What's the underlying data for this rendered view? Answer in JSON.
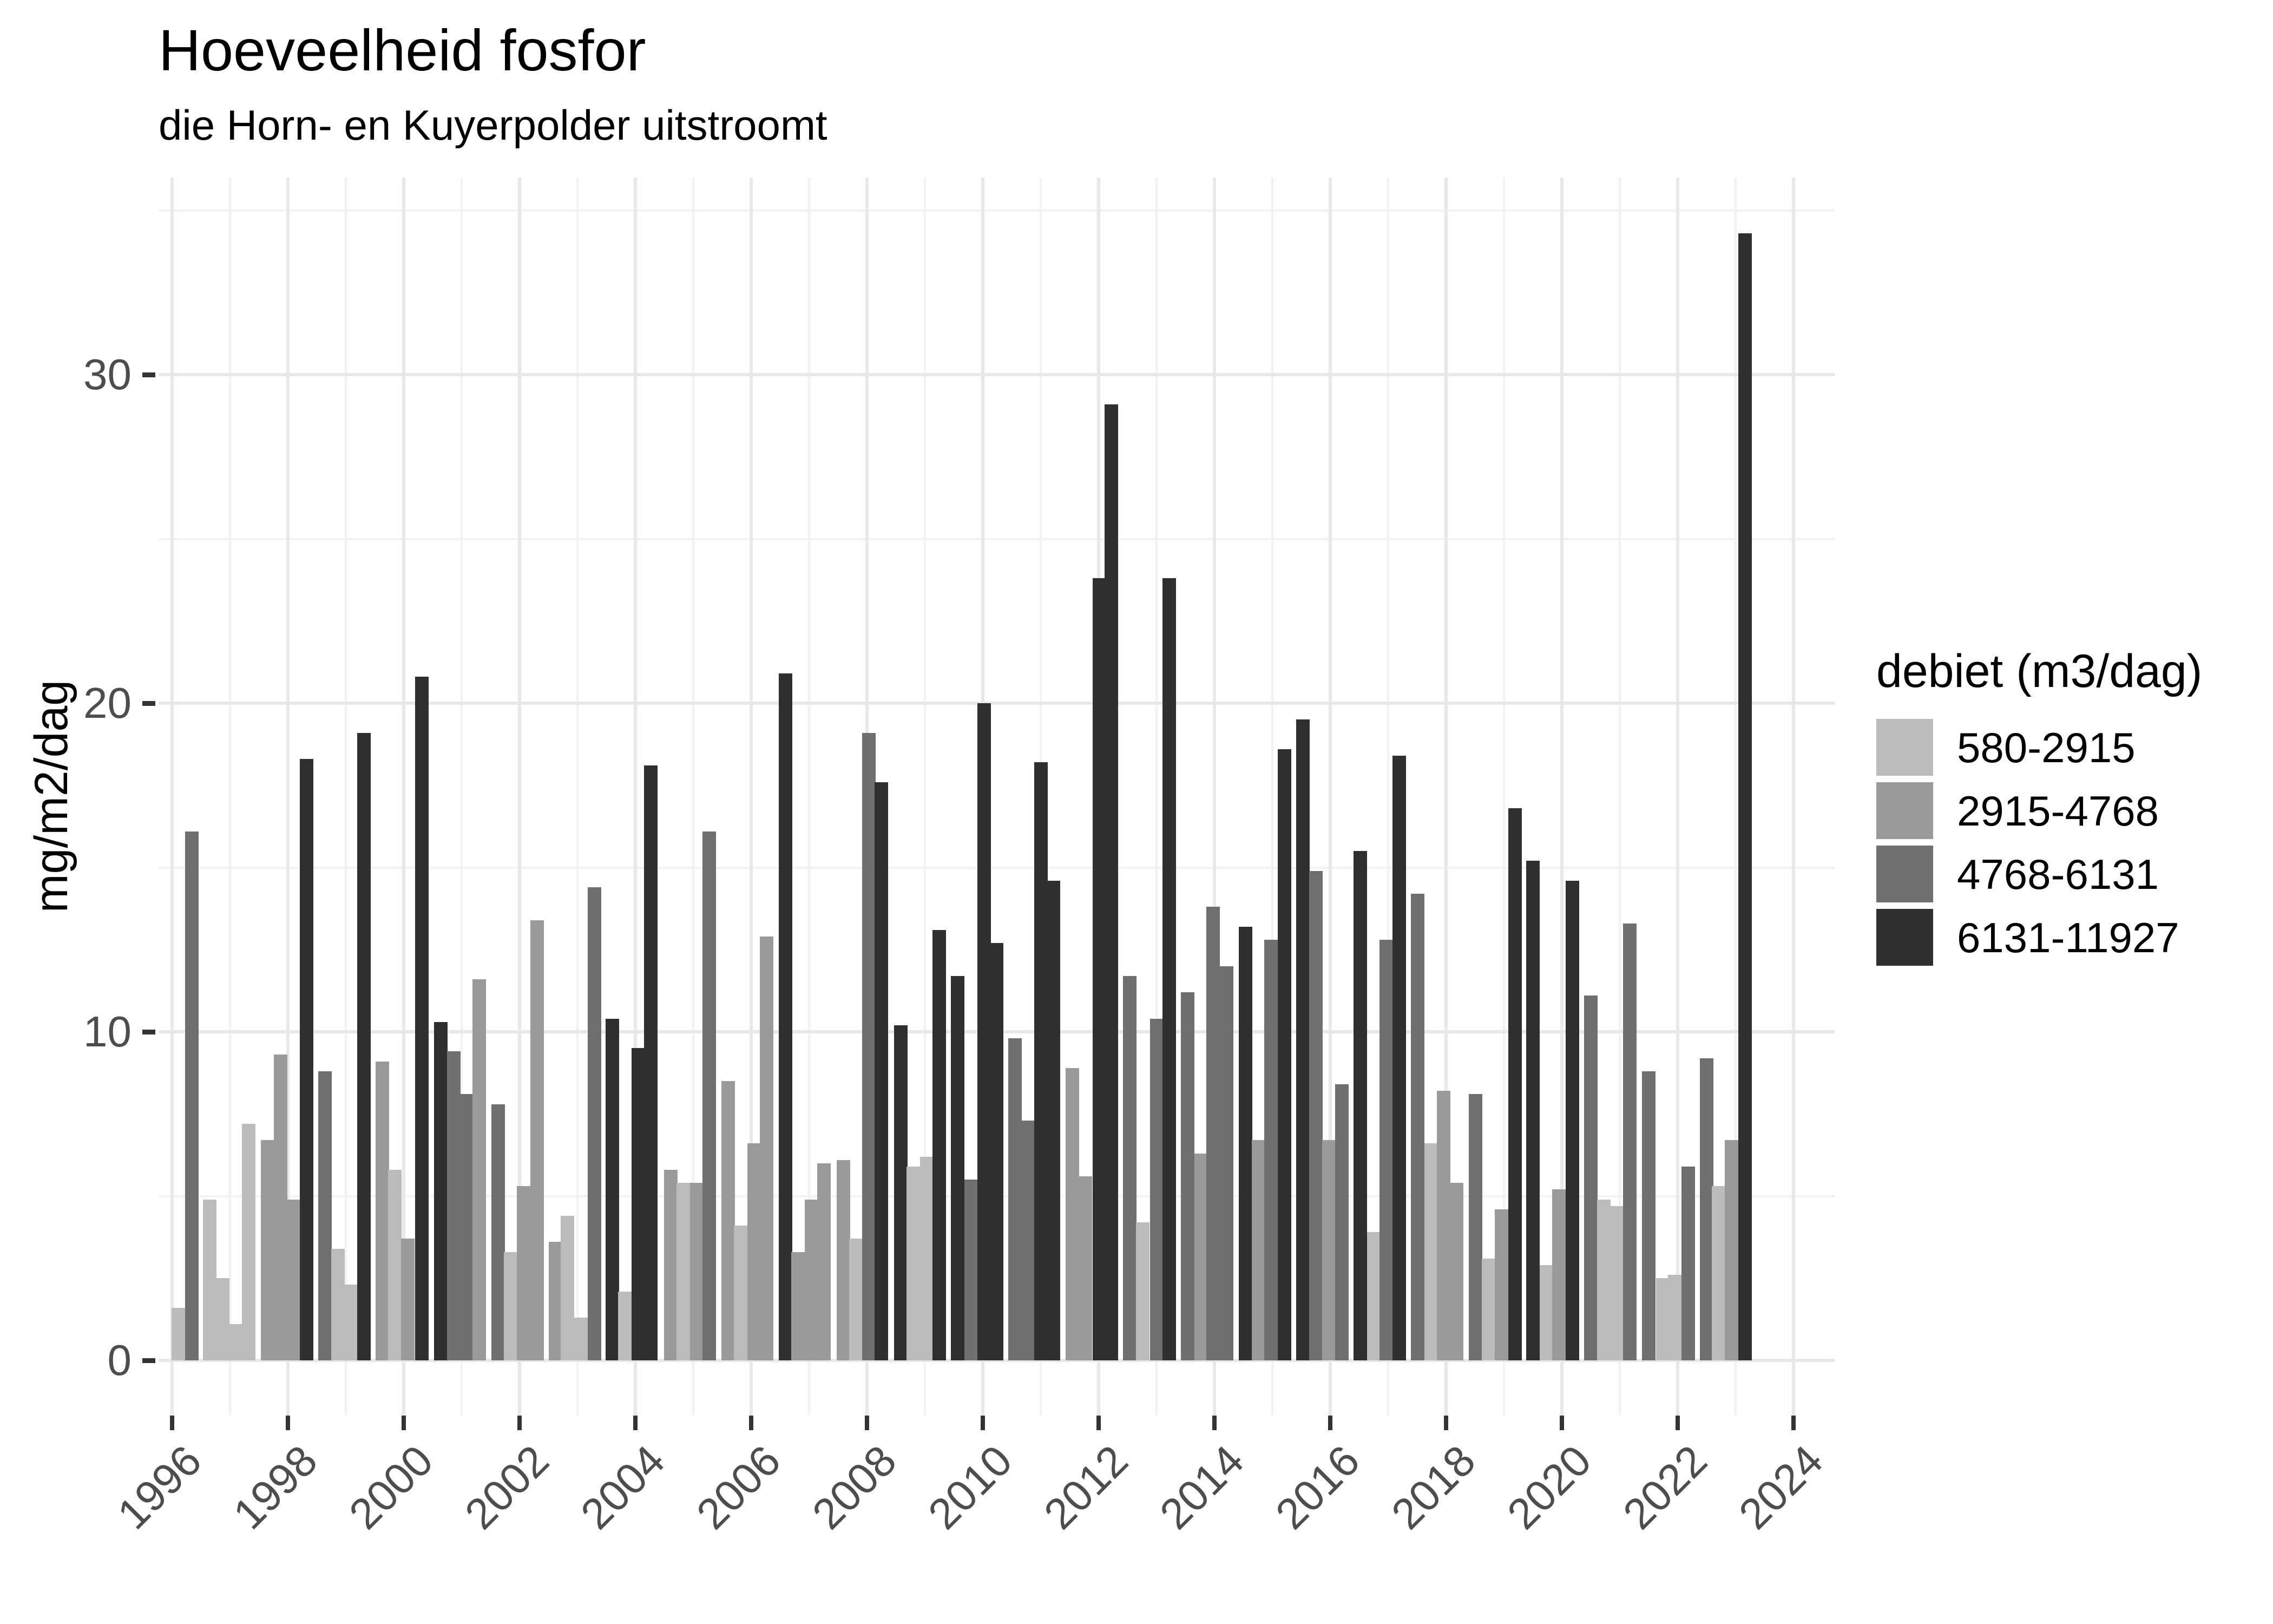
{
  "title": "Hoeveelheid fosfor",
  "subtitle": "die Horn- en Kuyerpolder uitstroomt",
  "y_axis_title": "mg/m2/dag",
  "legend": {
    "title": "debiet (m3/dag)",
    "items": [
      {
        "label": "580-2915",
        "color": "#BBBBBB"
      },
      {
        "label": "2915-4768",
        "color": "#9A9A9A"
      },
      {
        "label": "4768-6131",
        "color": "#6F6F6F"
      },
      {
        "label": "6131-11927",
        "color": "#2F2F2F"
      }
    ]
  },
  "chart_data": {
    "type": "bar",
    "title": "Hoeveelheid fosfor",
    "subtitle": "die Horn- en Kuyerpolder uitstroomt",
    "xlabel": "",
    "ylabel": "mg/m2/dag",
    "ylim": [
      0,
      36
    ],
    "xlim": [
      1995.77,
      2024.71
    ],
    "y_ticks": [
      0,
      10,
      20,
      30
    ],
    "y_minor": [
      5,
      15,
      25,
      35
    ],
    "x_ticks": [
      1996,
      1998,
      2000,
      2002,
      2004,
      2006,
      2008,
      2010,
      2012,
      2014,
      2016,
      2018,
      2020,
      2022,
      2024
    ],
    "x_minor": [
      1997,
      1999,
      2001,
      2003,
      2005,
      2007,
      2009,
      2011,
      2013,
      2015,
      2017,
      2019,
      2021,
      2023
    ],
    "grid": "on",
    "legend_position": "right",
    "legend_title": "debiet (m3/dag)",
    "categories": [
      {
        "id": 1,
        "label": "580-2915",
        "color": "#BBBBBB"
      },
      {
        "id": 2,
        "label": "2915-4768",
        "color": "#9A9A9A"
      },
      {
        "id": 3,
        "label": "4768-6131",
        "color": "#6F6F6F"
      },
      {
        "id": 4,
        "label": "6131-11927",
        "color": "#2F2F2F"
      }
    ],
    "bars": [
      [
        1996.11,
        1.6,
        1
      ],
      [
        1996.34,
        16.1,
        3
      ],
      [
        1996.65,
        4.9,
        1
      ],
      [
        1996.87,
        2.5,
        1
      ],
      [
        1997.09,
        1.1,
        1
      ],
      [
        1997.32,
        7.2,
        1
      ],
      [
        1997.65,
        6.7,
        2
      ],
      [
        1997.87,
        9.3,
        2
      ],
      [
        1998.09,
        4.9,
        2
      ],
      [
        1998.32,
        18.3,
        4
      ],
      [
        1998.64,
        8.8,
        3
      ],
      [
        1998.86,
        3.4,
        1
      ],
      [
        1999.08,
        2.3,
        1
      ],
      [
        1999.31,
        19.1,
        4
      ],
      [
        1999.63,
        9.1,
        2
      ],
      [
        1999.85,
        5.8,
        1
      ],
      [
        2000.07,
        3.7,
        2
      ],
      [
        2000.31,
        20.8,
        4
      ],
      [
        2000.64,
        10.3,
        4
      ],
      [
        2000.86,
        9.4,
        3
      ],
      [
        2001.08,
        8.1,
        3
      ],
      [
        2001.3,
        11.6,
        2
      ],
      [
        2001.63,
        7.8,
        3
      ],
      [
        2001.85,
        3.3,
        1
      ],
      [
        2002.07,
        5.3,
        2
      ],
      [
        2002.3,
        13.4,
        2
      ],
      [
        2002.62,
        3.6,
        2
      ],
      [
        2002.83,
        4.4,
        1
      ],
      [
        2003.06,
        1.3,
        1
      ],
      [
        2003.29,
        14.4,
        3
      ],
      [
        2003.6,
        10.4,
        4
      ],
      [
        2003.82,
        2.1,
        1
      ],
      [
        2004.05,
        9.5,
        4
      ],
      [
        2004.27,
        18.1,
        4
      ],
      [
        2004.61,
        5.8,
        2
      ],
      [
        2004.83,
        5.4,
        1
      ],
      [
        2005.06,
        5.4,
        2
      ],
      [
        2005.28,
        16.1,
        3
      ],
      [
        2005.6,
        8.5,
        2
      ],
      [
        2005.82,
        4.1,
        1
      ],
      [
        2006.05,
        6.6,
        2
      ],
      [
        2006.27,
        12.9,
        2
      ],
      [
        2006.59,
        20.9,
        4
      ],
      [
        2006.81,
        3.3,
        2
      ],
      [
        2007.04,
        4.9,
        2
      ],
      [
        2007.26,
        6.0,
        2
      ],
      [
        2007.59,
        6.1,
        2
      ],
      [
        2007.81,
        3.7,
        1
      ],
      [
        2008.03,
        19.1,
        3
      ],
      [
        2008.25,
        17.6,
        4
      ],
      [
        2008.58,
        10.2,
        4
      ],
      [
        2008.8,
        5.9,
        1
      ],
      [
        2009.03,
        6.2,
        1
      ],
      [
        2009.25,
        13.1,
        4
      ],
      [
        2009.57,
        11.7,
        4
      ],
      [
        2009.8,
        5.5,
        3
      ],
      [
        2010.02,
        20.0,
        4
      ],
      [
        2010.24,
        12.7,
        4
      ],
      [
        2010.56,
        9.8,
        3
      ],
      [
        2010.78,
        7.3,
        3
      ],
      [
        2011.0,
        18.2,
        4
      ],
      [
        2011.22,
        14.6,
        4
      ],
      [
        2011.55,
        8.9,
        2
      ],
      [
        2011.77,
        5.6,
        2
      ],
      [
        2012.01,
        23.8,
        4
      ],
      [
        2012.22,
        29.1,
        4
      ],
      [
        2012.54,
        11.7,
        3
      ],
      [
        2012.76,
        4.2,
        1
      ],
      [
        2013.0,
        10.4,
        3
      ],
      [
        2013.22,
        23.8,
        4
      ],
      [
        2013.54,
        11.2,
        3
      ],
      [
        2013.77,
        6.3,
        2
      ],
      [
        2013.98,
        13.8,
        3
      ],
      [
        2014.21,
        12.0,
        3
      ],
      [
        2014.54,
        13.2,
        4
      ],
      [
        2014.76,
        6.7,
        2
      ],
      [
        2014.98,
        12.8,
        3
      ],
      [
        2015.21,
        18.6,
        4
      ],
      [
        2015.53,
        19.5,
        4
      ],
      [
        2015.75,
        14.9,
        3
      ],
      [
        2015.98,
        6.7,
        2
      ],
      [
        2016.2,
        8.4,
        3
      ],
      [
        2016.52,
        15.5,
        4
      ],
      [
        2016.75,
        3.9,
        1
      ],
      [
        2016.97,
        12.8,
        3
      ],
      [
        2017.19,
        18.4,
        4
      ],
      [
        2017.51,
        14.2,
        3
      ],
      [
        2017.74,
        6.6,
        1
      ],
      [
        2017.96,
        8.2,
        2
      ],
      [
        2018.18,
        5.4,
        2
      ],
      [
        2018.51,
        8.1,
        3
      ],
      [
        2018.73,
        3.1,
        1
      ],
      [
        2018.96,
        4.6,
        2
      ],
      [
        2019.19,
        16.8,
        4
      ],
      [
        2019.5,
        15.2,
        4
      ],
      [
        2019.73,
        2.9,
        1
      ],
      [
        2019.95,
        5.2,
        2
      ],
      [
        2020.18,
        14.6,
        4
      ],
      [
        2020.5,
        11.1,
        3
      ],
      [
        2020.72,
        4.9,
        1
      ],
      [
        2020.94,
        4.7,
        1
      ],
      [
        2021.17,
        13.3,
        3
      ],
      [
        2021.5,
        8.8,
        3
      ],
      [
        2021.74,
        2.5,
        1
      ],
      [
        2021.95,
        2.6,
        1
      ],
      [
        2022.18,
        5.9,
        3
      ],
      [
        2022.5,
        9.2,
        3
      ],
      [
        2022.71,
        5.3,
        1
      ],
      [
        2022.93,
        6.7,
        2
      ],
      [
        2023.16,
        34.3,
        4
      ]
    ]
  }
}
